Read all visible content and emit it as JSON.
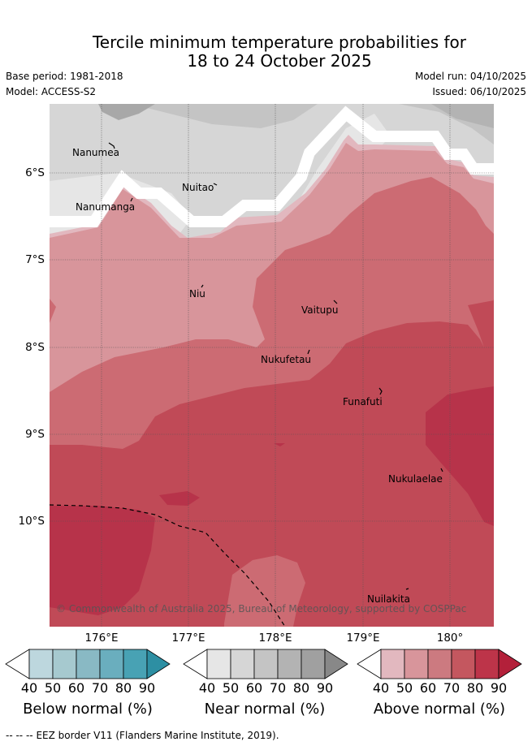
{
  "title_line1": "Tercile minimum temperature probabilities for",
  "title_line2": "18 to 24 October 2025",
  "base_period": "Base period: 1981-2018",
  "model": "Model: ACCESS-S2",
  "model_run": "Model run: 04/10/2025",
  "issued": "Issued: 06/10/2025",
  "lat_labels": [
    "6°S",
    "7°S",
    "8°S",
    "9°S",
    "10°S"
  ],
  "lon_labels": [
    "176°E",
    "177°E",
    "178°E",
    "179°E",
    "180°"
  ],
  "places": [
    "Nanumea",
    "Nuitao",
    "Nanumanga",
    "Niu",
    "Vaitupu",
    "Nukufetau",
    "Funafuti",
    "Nukulaelae",
    "Nuilakita"
  ],
  "copyright": "© Commonwealth of Australia 2025, Bureau of Meteorology, supported by COSPPac",
  "colorbars": [
    {
      "title": "Below normal (%)",
      "ticks": [
        "40",
        "50",
        "60",
        "70",
        "80",
        "90"
      ],
      "colors": [
        "#ffffff",
        "#bdd7de",
        "#a6c9cf",
        "#89b9c4",
        "#6aaebe",
        "#48a2b4",
        "#2d8fa3"
      ]
    },
    {
      "title": "Near normal (%)",
      "ticks": [
        "40",
        "50",
        "60",
        "70",
        "80",
        "90"
      ],
      "colors": [
        "#ffffff",
        "#e6e6e6",
        "#d6d6d6",
        "#c4c4c4",
        "#b3b3b3",
        "#a0a0a0",
        "#888888"
      ]
    },
    {
      "title": "Above normal (%)",
      "ticks": [
        "40",
        "50",
        "60",
        "70",
        "80",
        "90"
      ],
      "colors": [
        "#ffffff",
        "#e2b8bf",
        "#d8959b",
        "#cc7a80",
        "#c4575f",
        "#bd3449",
        "#b3203a"
      ]
    }
  ],
  "footnote_dashes": "--  --  --",
  "footnote": "EEZ border V11 (Flanders Marine Institute, 2019)."
}
